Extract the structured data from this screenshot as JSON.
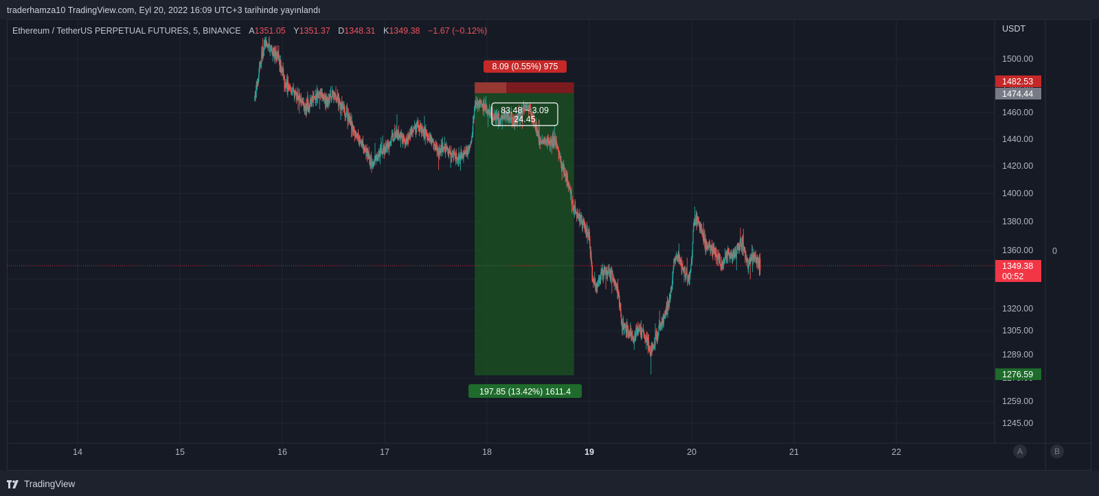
{
  "header": {
    "published_text": "traderhamza10 TradingView.com, Eyl 20, 2022 16:09 UTC+3 tarihinde yayınlandı"
  },
  "legend": {
    "symbol": "Ethereum / TetherUS PERPETUAL FUTURES, 5, BINANCE",
    "open_label": "A",
    "open": "1351.05",
    "high_label": "Y",
    "high": "1351.37",
    "low_label": "D",
    "low": "1348.31",
    "close_label": "K",
    "close": "1349.38",
    "change": "−1.67 (−0.12%)"
  },
  "axis": {
    "currency": "USDT",
    "right_zero": "0",
    "btn_a": "A",
    "btn_b": "B"
  },
  "colors": {
    "background": "#161a25",
    "grid": "#222632",
    "up": "#26a69a",
    "down": "#ef5350",
    "stop_zone": "#8e1c1e",
    "target_zone": "#1b4a24",
    "last_price_tag": "#f23645",
    "entry_tag": "#787b86",
    "stop_tag": "#c62828",
    "target_tag": "#1e6b2b"
  },
  "position_tool": {
    "type": "short",
    "entry": 1474.44,
    "stop": 1482.53,
    "target": 1276.59,
    "start_time": 17.88,
    "end_time": 18.85,
    "stop_label": "8.09 (0.55%) 975",
    "target_label": "197.85 (13.42%) 1611.4",
    "info_line1": "83.48 ~ 3.09",
    "info_line2": "24.45"
  },
  "price_tags": {
    "stop": "1482.53",
    "entry": "1474.44",
    "last_price": "1349.38",
    "countdown": "00:52",
    "target": "1276.59"
  },
  "chart_data": {
    "type": "candlestick",
    "title": "Ethereum / TetherUS PERPETUAL FUTURES, 5, BINANCE",
    "y_unit": "USDT",
    "x_unit": "day of month (Sep 2022)",
    "xlim": [
      13.35,
      23.0
    ],
    "x_ticks": [
      {
        "v": 14,
        "label": "14"
      },
      {
        "v": 15,
        "label": "15"
      },
      {
        "v": 16,
        "label": "16"
      },
      {
        "v": 17,
        "label": "17"
      },
      {
        "v": 18,
        "label": "18"
      },
      {
        "v": 19,
        "label": "19"
      },
      {
        "v": 20,
        "label": "20"
      },
      {
        "v": 21,
        "label": "21"
      },
      {
        "v": 22,
        "label": "22"
      }
    ],
    "y_ticks": [
      "1500.00",
      "1480.00",
      "1460.00",
      "1440.00",
      "1420.00",
      "1400.00",
      "1380.00",
      "1360.00",
      "1340.00",
      "1320.00",
      "1305.00",
      "1289.00",
      "1275.00",
      "1259.00",
      "1245.00"
    ],
    "price_path": [
      [
        15.73,
        1470
      ],
      [
        15.78,
        1495
      ],
      [
        15.83,
        1512
      ],
      [
        15.9,
        1505
      ],
      [
        15.97,
        1500
      ],
      [
        16.03,
        1482
      ],
      [
        16.1,
        1476
      ],
      [
        16.17,
        1470
      ],
      [
        16.23,
        1462
      ],
      [
        16.3,
        1470
      ],
      [
        16.37,
        1475
      ],
      [
        16.43,
        1468
      ],
      [
        16.5,
        1474
      ],
      [
        16.57,
        1466
      ],
      [
        16.63,
        1460
      ],
      [
        16.7,
        1446
      ],
      [
        16.77,
        1438
      ],
      [
        16.83,
        1430
      ],
      [
        16.88,
        1420
      ],
      [
        16.93,
        1427
      ],
      [
        17.0,
        1432
      ],
      [
        17.07,
        1440
      ],
      [
        17.13,
        1444
      ],
      [
        17.2,
        1438
      ],
      [
        17.27,
        1447
      ],
      [
        17.33,
        1449
      ],
      [
        17.4,
        1443
      ],
      [
        17.47,
        1439
      ],
      [
        17.53,
        1430
      ],
      [
        17.6,
        1433
      ],
      [
        17.67,
        1428
      ],
      [
        17.73,
        1426
      ],
      [
        17.8,
        1430
      ],
      [
        17.85,
        1438
      ],
      [
        17.88,
        1466
      ],
      [
        17.93,
        1467
      ],
      [
        18.0,
        1460
      ],
      [
        18.07,
        1457
      ],
      [
        18.13,
        1455
      ],
      [
        18.2,
        1458
      ],
      [
        18.27,
        1453
      ],
      [
        18.33,
        1460
      ],
      [
        18.4,
        1465
      ],
      [
        18.45,
        1454
      ],
      [
        18.52,
        1439
      ],
      [
        18.58,
        1437
      ],
      [
        18.63,
        1438
      ],
      [
        18.68,
        1438
      ],
      [
        18.72,
        1423
      ],
      [
        18.76,
        1416
      ],
      [
        18.8,
        1405
      ],
      [
        18.85,
        1388
      ],
      [
        18.9,
        1383
      ],
      [
        18.95,
        1377
      ],
      [
        19.0,
        1369
      ],
      [
        19.03,
        1340
      ],
      [
        19.07,
        1335
      ],
      [
        19.12,
        1344
      ],
      [
        19.18,
        1346
      ],
      [
        19.23,
        1340
      ],
      [
        19.28,
        1333
      ],
      [
        19.32,
        1308
      ],
      [
        19.38,
        1304
      ],
      [
        19.43,
        1300
      ],
      [
        19.48,
        1307
      ],
      [
        19.52,
        1303
      ],
      [
        19.57,
        1297
      ],
      [
        19.6,
        1290
      ],
      [
        19.63,
        1296
      ],
      [
        19.68,
        1307
      ],
      [
        19.73,
        1313
      ],
      [
        19.77,
        1322
      ],
      [
        19.8,
        1332
      ],
      [
        19.83,
        1353
      ],
      [
        19.87,
        1356
      ],
      [
        19.92,
        1346
      ],
      [
        19.97,
        1340
      ],
      [
        20.0,
        1352
      ],
      [
        20.02,
        1380
      ],
      [
        20.06,
        1383
      ],
      [
        20.1,
        1374
      ],
      [
        20.14,
        1363
      ],
      [
        20.2,
        1361
      ],
      [
        20.25,
        1356
      ],
      [
        20.3,
        1348
      ],
      [
        20.35,
        1360
      ],
      [
        20.4,
        1355
      ],
      [
        20.45,
        1362
      ],
      [
        20.5,
        1365
      ],
      [
        20.55,
        1350
      ],
      [
        20.6,
        1356
      ],
      [
        20.65,
        1352
      ],
      [
        20.67,
        1349.38
      ]
    ]
  }
}
